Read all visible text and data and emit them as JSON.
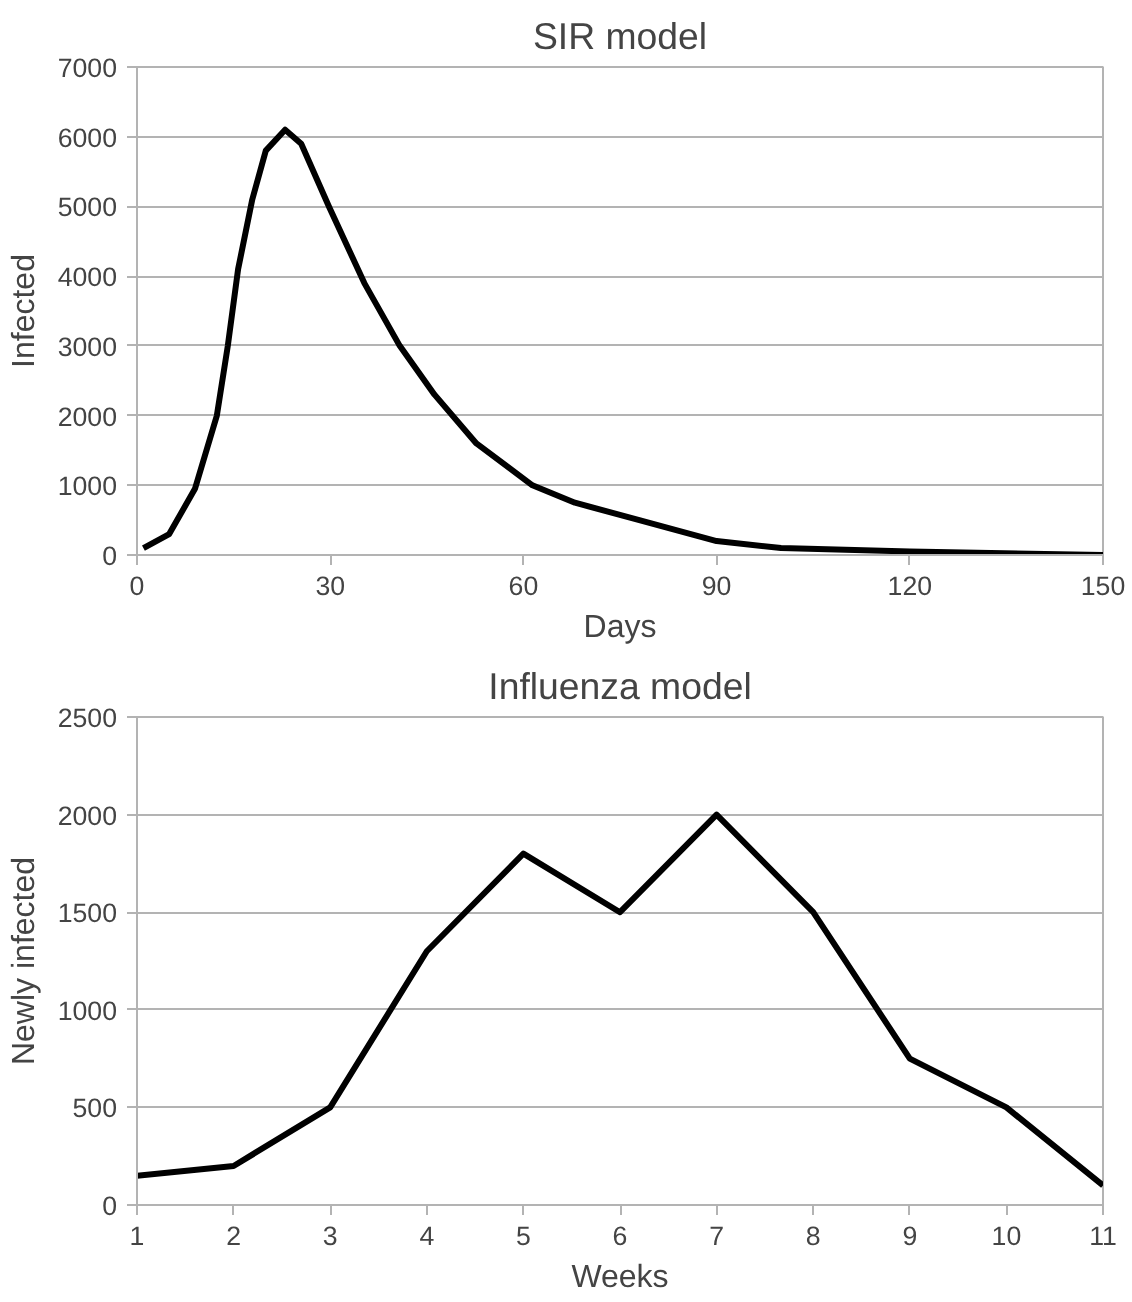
{
  "chart_data": [
    {
      "type": "line",
      "title": "SIR model",
      "xlabel": "Days",
      "ylabel": "Infected",
      "xlim": [
        0,
        150
      ],
      "xticks": [
        0,
        30,
        60,
        90,
        120,
        150
      ],
      "ylim": [
        0,
        7000
      ],
      "yticks": [
        0,
        1000,
        2000,
        3000,
        4000,
        5000,
        6000,
        7000
      ],
      "grid": "y",
      "marker": "none",
      "line_style": "solid",
      "series": [
        {
          "color": "#000000",
          "x": [
            1,
            5,
            9,
            12.4,
            14.1,
            15.7,
            17.9,
            20,
            23,
            25.5,
            29.8,
            35.3,
            40.8,
            46.2,
            52.7,
            61.4,
            68,
            78,
            90,
            100,
            120,
            150
          ],
          "values": [
            100,
            300,
            950,
            2000,
            3000,
            4100,
            5100,
            5800,
            6100,
            5900,
            5000,
            3900,
            3000,
            2300,
            1600,
            1000,
            750,
            500,
            200,
            100,
            50,
            0
          ]
        }
      ]
    },
    {
      "type": "line",
      "title": "Influenza model",
      "xlabel": "Weeks",
      "ylabel": "Newly infected",
      "xlim": [
        1,
        11
      ],
      "xticks": [
        1,
        2,
        3,
        4,
        5,
        6,
        7,
        8,
        9,
        10,
        11
      ],
      "ylim": [
        0,
        2500
      ],
      "yticks": [
        0,
        500,
        1000,
        1500,
        2000,
        2500
      ],
      "grid": "y",
      "marker": "none",
      "line_style": "solid",
      "series": [
        {
          "color": "#000000",
          "x": [
            1,
            2,
            3,
            4,
            5,
            6,
            7,
            8,
            9,
            10,
            11
          ],
          "values": [
            150,
            200,
            500,
            1300,
            1800,
            1500,
            2000,
            1500,
            750,
            500,
            100
          ]
        }
      ]
    }
  ]
}
